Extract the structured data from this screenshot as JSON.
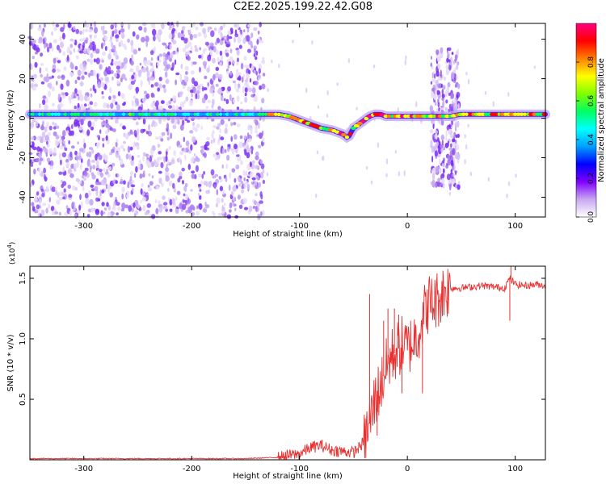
{
  "title": "C2E2.2025.199.22.42.G08",
  "chart_data": [
    {
      "type": "heatmap",
      "xlabel": "Height of straight line (km)",
      "ylabel": "Frequency (Hz)",
      "xlim": [
        -350,
        128
      ],
      "ylim": [
        -50,
        48
      ],
      "xticks": [
        -300,
        -200,
        -100,
        0,
        100
      ],
      "yticks": [
        -40,
        -20,
        0,
        20,
        40
      ],
      "colorbar": {
        "label": "Normalized spectral amplitude",
        "range": [
          0,
          1
        ],
        "ticks": [
          "0.0",
          "0.2",
          "0.4",
          "0.6",
          "0.8"
        ],
        "colors": [
          "#ffffff",
          "#c8a8f0",
          "#8000ff",
          "#0000ff",
          "#00a0ff",
          "#00ffff",
          "#00ff60",
          "#80ff00",
          "#ffff00",
          "#ff8000",
          "#ff0000",
          "#ff0080"
        ]
      },
      "noise_region_x": [
        -350,
        -133
      ],
      "ridge": {
        "x": [
          -350,
          -300,
          -200,
          -133,
          -120,
          -110,
          -100,
          -90,
          -80,
          -70,
          -60,
          -55,
          -50,
          -45,
          -40,
          -35,
          -30,
          -25,
          -20,
          -10,
          0,
          10,
          20,
          30,
          40,
          50,
          60,
          80,
          100,
          128
        ],
        "frequency": [
          2,
          2,
          2,
          2,
          2,
          1,
          -1,
          -3,
          -5,
          -6,
          -8,
          -10,
          -5,
          -3,
          -1,
          1,
          2,
          2,
          1,
          1,
          1,
          1,
          1,
          1,
          1,
          2,
          2,
          2,
          2,
          2
        ]
      },
      "bursts_x": [
        28,
        42
      ]
    },
    {
      "type": "line",
      "xlabel": "Height of straight line (km)",
      "ylabel": "SNR (10 * v/v)",
      "y_multiplier": "(x10",
      "y_multiplier_exp": "4",
      "y_multiplier_close": ")",
      "xlim": [
        -350,
        128
      ],
      "ylim": [
        0,
        1.6
      ],
      "xticks": [
        -300,
        -200,
        -100,
        0,
        100
      ],
      "yticks": [
        "0.5",
        "1.0",
        "1.5"
      ],
      "color": "#e83030",
      "series": [
        {
          "x": [
            -350,
            -300,
            -250,
            -200,
            -150,
            -120,
            -100,
            -90,
            -80,
            -70,
            -60,
            -50,
            -45,
            -40,
            -35,
            -30,
            -25,
            -20,
            -15,
            -10,
            -5,
            0,
            5,
            10,
            15,
            20,
            25,
            30,
            35,
            40,
            50,
            60,
            70,
            80,
            90,
            95,
            100,
            110,
            120,
            128
          ],
          "y": [
            0.01,
            0.01,
            0.01,
            0.01,
            0.01,
            0.02,
            0.05,
            0.1,
            0.12,
            0.08,
            0.07,
            0.06,
            0.1,
            0.15,
            0.3,
            0.5,
            0.6,
            0.75,
            0.85,
            0.9,
            0.95,
            0.92,
            0.98,
            1.05,
            1.2,
            1.3,
            1.3,
            1.35,
            1.4,
            1.42,
            1.42,
            1.43,
            1.44,
            1.43,
            1.42,
            1.5,
            1.45,
            1.44,
            1.45,
            1.44
          ]
        }
      ],
      "spikes": [
        {
          "x": -35,
          "y": 1.37
        },
        {
          "x": -28,
          "y": 0.2
        },
        {
          "x": -22,
          "y": 1.15
        },
        {
          "x": -18,
          "y": 1.25
        },
        {
          "x": -12,
          "y": 1.25
        },
        {
          "x": -8,
          "y": 1.2
        },
        {
          "x": -5,
          "y": 0.55
        },
        {
          "x": 14,
          "y": 0.55
        },
        {
          "x": 95,
          "y": 1.15
        },
        {
          "x": 96,
          "y": 1.6
        }
      ]
    }
  ]
}
